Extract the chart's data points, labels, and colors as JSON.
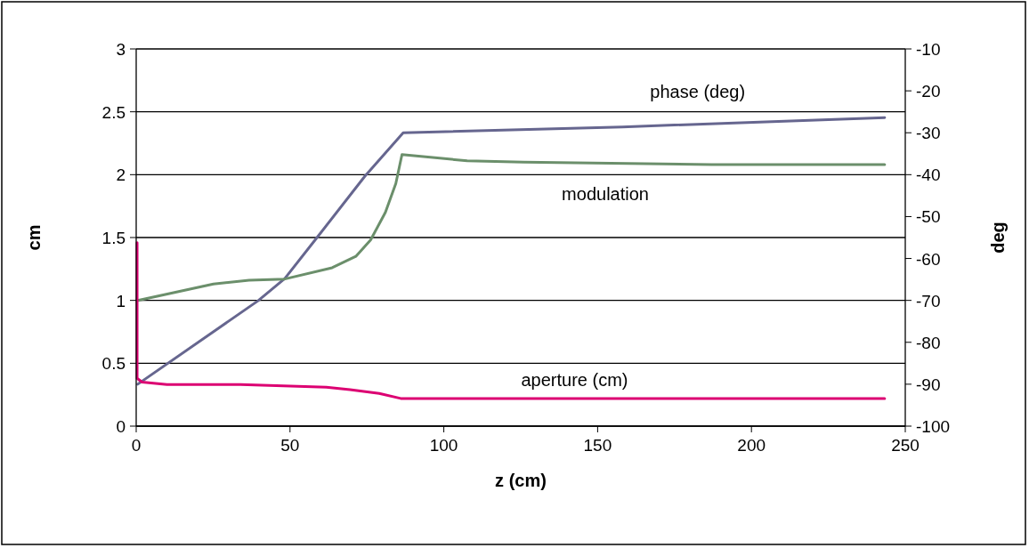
{
  "chart_data": {
    "type": "line",
    "xlabel": "z (cm)",
    "ylabel": "cm",
    "y2label": "deg",
    "xlim": [
      0,
      250
    ],
    "xticks": [
      0,
      50,
      100,
      150,
      200,
      250
    ],
    "ylim": [
      0,
      3
    ],
    "yticks": [
      0,
      0.5,
      1,
      1.5,
      2,
      2.5,
      3
    ],
    "y2lim": [
      -100,
      -10
    ],
    "y2ticks": [
      -100,
      -90,
      -80,
      -70,
      -60,
      -50,
      -40,
      -30,
      -20,
      -10
    ],
    "grid": "y",
    "marker": "none",
    "line_style": "solid",
    "series": [
      {
        "name": "phase (deg)",
        "color": "#66668f",
        "axis": "y2",
        "x": [
          0.5,
          39.6,
          48.3,
          58.9,
          74.3,
          86.8,
          158,
          243.3
        ],
        "values": [
          -90,
          -70.1,
          -64.8,
          -54.9,
          -40.4,
          -30,
          -28.6,
          -26.4
        ]
      },
      {
        "name": "modulation",
        "color": "#6b8f6b",
        "x": [
          0.5,
          25.1,
          36.7,
          48.3,
          63.7,
          71.4,
          76.2,
          81,
          84.4,
          86.4,
          107.6,
          125.9,
          187,
          243.3
        ],
        "values": [
          1,
          1.13,
          1.16,
          1.17,
          1.26,
          1.35,
          1.48,
          1.7,
          1.93,
          2.16,
          2.11,
          2.1,
          2.08,
          2.08
        ]
      },
      {
        "name": "aperture (cm)",
        "color": "#dc0072",
        "x": [
          0.3,
          0.3,
          1.9,
          10,
          33.9,
          61.8,
          69.5,
          79,
          86,
          243.3
        ],
        "values": [
          1.46,
          0.38,
          0.35,
          0.33,
          0.33,
          0.31,
          0.29,
          0.26,
          0.22,
          0.22
        ]
      }
    ]
  }
}
